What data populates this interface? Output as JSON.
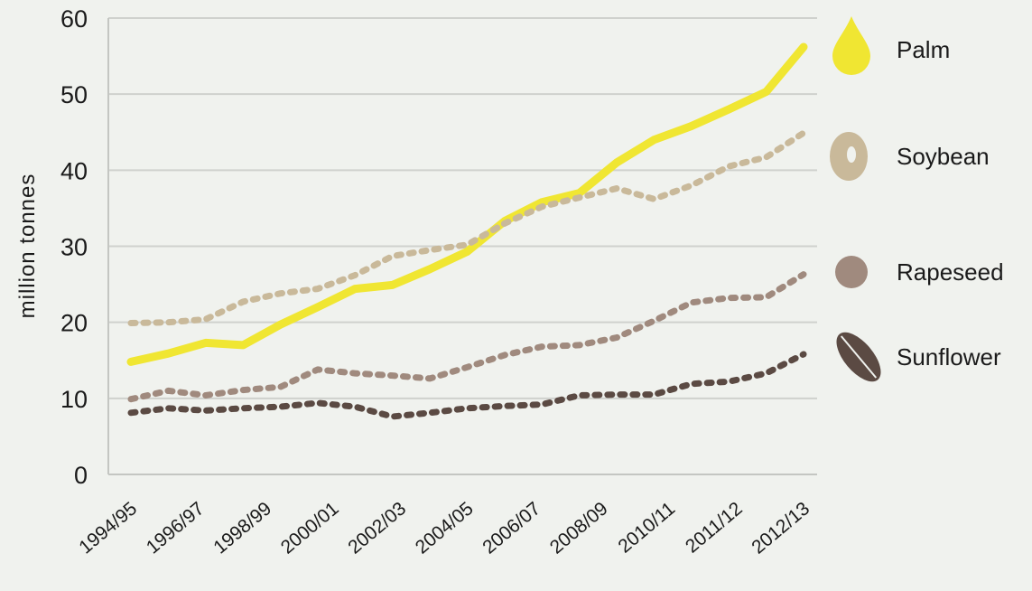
{
  "chart_data": {
    "type": "line",
    "ylabel": "million tonnes",
    "ylim": [
      0,
      60
    ],
    "yticks": [
      0,
      10,
      20,
      30,
      40,
      50,
      60
    ],
    "grid": "horizontal",
    "legend_placement": "right",
    "tick_labels": [
      "1994/95",
      "1996/97",
      "1998/99",
      "2000/01",
      "2002/03",
      "2004/05",
      "2006/07",
      "2008/09",
      "2010/11",
      "2011/12",
      "2012/13"
    ],
    "x": [
      1994,
      1995,
      1996,
      1997,
      1998,
      1999,
      2000,
      2001,
      2002,
      2003,
      2004,
      2005,
      2006,
      2007,
      2008,
      2009,
      2010,
      2011,
      2012
    ],
    "series": [
      {
        "name": "Palm",
        "color": "#f0e632",
        "style": "solid",
        "icon": "drop-icon",
        "values": [
          14.8,
          15.9,
          17.3,
          17.0,
          19.7,
          22.0,
          24.4,
          24.9,
          27.0,
          29.3,
          33.3,
          35.8,
          37.0,
          41.0,
          44.0,
          45.8,
          48.0,
          50.3,
          56.2
        ]
      },
      {
        "name": "Soybean",
        "color": "#c9b99a",
        "style": "dotted",
        "icon": "soybean-icon",
        "values": [
          19.9,
          20.0,
          20.4,
          22.7,
          23.8,
          24.4,
          26.2,
          28.7,
          29.5,
          30.2,
          33.0,
          35.2,
          36.4,
          37.6,
          36.2,
          38.0,
          40.5,
          41.7,
          44.9
        ]
      },
      {
        "name": "Rapeseed",
        "color": "#a08a7e",
        "style": "dotted",
        "icon": "rapeseed-icon",
        "values": [
          9.9,
          11.0,
          10.4,
          11.1,
          11.5,
          13.8,
          13.3,
          13.0,
          12.6,
          14.1,
          15.7,
          16.8,
          17.0,
          18.0,
          20.2,
          22.6,
          23.2,
          23.3,
          26.3
        ]
      },
      {
        "name": "Sunflower",
        "color": "#5b4a43",
        "style": "dotted",
        "icon": "sunflower-seed-icon",
        "values": [
          8.1,
          8.7,
          8.4,
          8.7,
          8.9,
          9.4,
          8.9,
          7.6,
          8.1,
          8.7,
          9.0,
          9.2,
          10.4,
          10.5,
          10.5,
          11.9,
          12.2,
          13.3,
          15.8
        ]
      }
    ]
  }
}
